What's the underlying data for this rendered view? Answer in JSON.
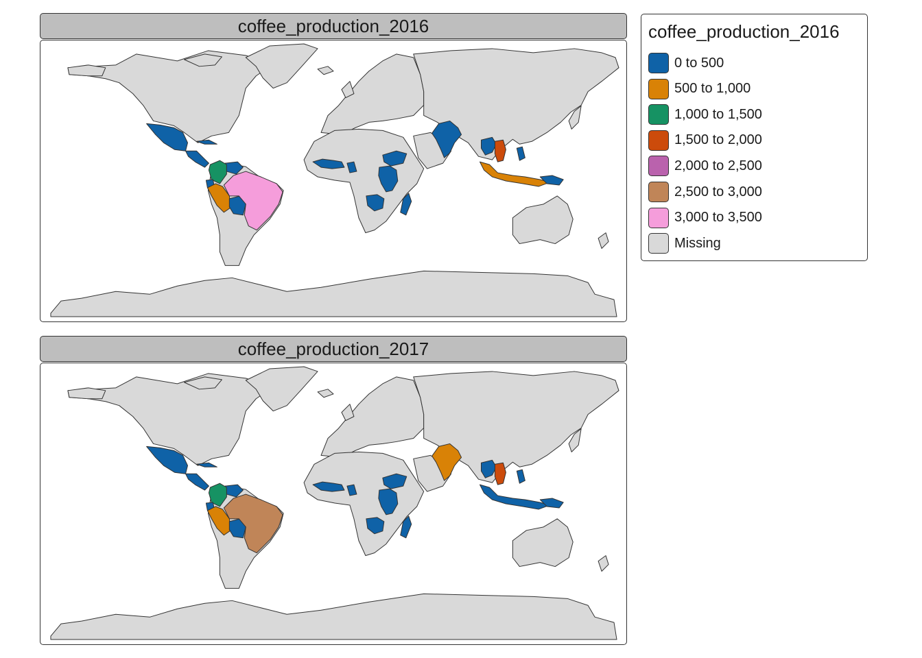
{
  "facets": [
    {
      "title": "coffee_production_2016",
      "regions": {
        "mexico": "0 to 500",
        "central_america": "0 to 500",
        "cuba": "0 to 500",
        "colombia": "1,000 to 1,500",
        "venezuela": "0 to 500",
        "ecuador": "0 to 500",
        "peru": "500 to 1,000",
        "bolivia": "0 to 500",
        "brazil": "3,000 to 3,500",
        "west_africa": "0 to 500",
        "cameroon_car": "0 to 500",
        "ethiopia": "0 to 500",
        "east_africa": "0 to 500",
        "southern_africa": "0 to 500",
        "madagascar": "0 to 500",
        "india": "0 to 500",
        "myanmar_laos": "0 to 500",
        "vietnam": "1,500 to 2,000",
        "philippines": "0 to 500",
        "indonesia": "500 to 1,000",
        "papua": "0 to 500"
      }
    },
    {
      "title": "coffee_production_2017",
      "regions": {
        "mexico": "0 to 500",
        "central_america": "0 to 500",
        "cuba": "0 to 500",
        "colombia": "1,000 to 1,500",
        "venezuela": "0 to 500",
        "ecuador": "0 to 500",
        "peru": "500 to 1,000",
        "bolivia": "0 to 500",
        "brazil": "2,500 to 3,000",
        "west_africa": "0 to 500",
        "cameroon_car": "0 to 500",
        "ethiopia": "0 to 500",
        "east_africa": "0 to 500",
        "southern_africa": "0 to 500",
        "madagascar": "0 to 500",
        "india": "500 to 1,000",
        "myanmar_laos": "0 to 500",
        "vietnam": "1,500 to 2,000",
        "philippines": "0 to 500",
        "indonesia": "0 to 500",
        "papua": "0 to 500"
      }
    }
  ],
  "legend": {
    "title": "coffee_production_2016",
    "items": [
      {
        "label": "0 to 500",
        "color": "#0f62a7"
      },
      {
        "label": "500 to 1,000",
        "color": "#d98206"
      },
      {
        "label": "1,000 to 1,500",
        "color": "#169263"
      },
      {
        "label": "1,500 to 2,000",
        "color": "#cc4b0b"
      },
      {
        "label": "2,000 to 2,500",
        "color": "#ba62ad"
      },
      {
        "label": "2,500 to 3,000",
        "color": "#c08558"
      },
      {
        "label": "3,000 to 3,500",
        "color": "#f59ddb"
      },
      {
        "label": "Missing",
        "color": "#d9d9d9"
      }
    ]
  }
}
